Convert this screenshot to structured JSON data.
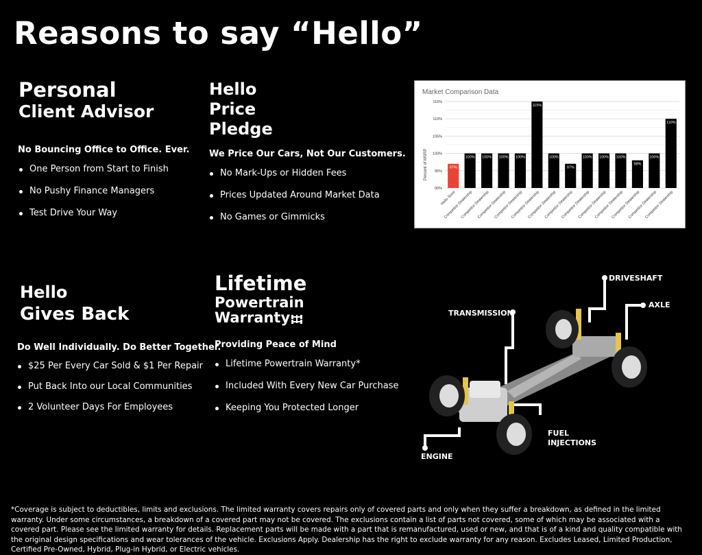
{
  "title": "Reasons to say “Hello”",
  "sections": {
    "advisor": {
      "heading_line1": "Personal",
      "heading_line2": "Client Advisor",
      "subheading": "No Bouncing Office to Office. Ever.",
      "items": [
        "One Person from Start to Finish",
        "No Pushy Finance Managers",
        "Test Drive Your Way"
      ]
    },
    "price": {
      "heading_line1": "Hello",
      "heading_line2": "Price",
      "heading_line3": "Pledge",
      "subheading": "We Price Our Cars, Not Our Customers.",
      "items": [
        "No Mark-Ups or Hidden Fees",
        "Prices Updated Around Market Data",
        "No Games or Gimmicks"
      ]
    },
    "gives": {
      "heading_line1": "Hello",
      "heading_line2": "Gives Back",
      "subheading": "Do Well Individually. Do Better Together.",
      "items": [
        "$25 Per Every Car Sold & $1 Per Repair",
        "Put Back Into our Local Communities",
        "2 Volunteer Days For Employees"
      ]
    },
    "warranty": {
      "heading_line1": "Lifetime",
      "heading_line2": "Powertrain",
      "heading_line3": "Warranty",
      "heading_icon": "drivetrain-icon",
      "subheading": "Providing Peace of Mind",
      "items": [
        "Lifetime Powertrain Warranty*",
        "Included With Every New Car Purchase",
        "Keeping You Protected Longer"
      ]
    }
  },
  "diagram_labels": {
    "driveshaft": "DRIVESHAFT",
    "axle": "AXLE",
    "transmission": "TRANSMISSION",
    "fuel": "FUEL INJECTIONS",
    "engine": "ENGINE"
  },
  "chart_data": {
    "type": "bar",
    "title": "Market Comparison Data",
    "ylabel": "Percent of MSRP",
    "xlabel": "",
    "ylim": [
      90,
      115
    ],
    "yticks": [
      "90%",
      "95%",
      "100%",
      "105%",
      "110%",
      "115%"
    ],
    "grid": true,
    "categories": [
      "Hello Store",
      "Competitor Dealership",
      "Competitor Dealership",
      "Competitor Dealership",
      "Competitor Dealership",
      "Competitor Dealership",
      "Competitor Dealership",
      "Competitor Dealership",
      "Competitor Dealership",
      "Competitor Dealership",
      "Competitor Dealership",
      "Competitor Dealership",
      "Competitor Dealership",
      "Competitor Dealership"
    ],
    "values": [
      97,
      100,
      100,
      100,
      100,
      115,
      100,
      97,
      100,
      100,
      100,
      98,
      100,
      110
    ],
    "data_labels": [
      "97%",
      "100%",
      "100%",
      "100%",
      "100%",
      "115%",
      "100%",
      "97%",
      "100%",
      "100%",
      "100%",
      "98%",
      "100%",
      "110%"
    ],
    "colors": {
      "highlight": "#ea4335",
      "default": "#000000"
    }
  },
  "footnote": "*Coverage is subject to deductibles, limits and exclusions. The limited warranty covers repairs only of covered parts and only when they suffer a breakdown, as defined in the limited warranty. Under some circumstances, a breakdown of a covered part may not be covered. The exclusions contain a list of parts not covered, some of which may be associated with a covered part. Please see the limited warranty for details. Replacement parts will be made with a part that is remanufactured, used or new, and that is of a kind and quality compatible with the original design specifications and wear tolerances of the vehicle. Exclusions Apply. Dealership has the right to exclude warranty for any reason. Excludes Leased, Limited Production, Certified Pre-Owned, Hybrid, Plug-in Hybrid, or Electric vehicles."
}
